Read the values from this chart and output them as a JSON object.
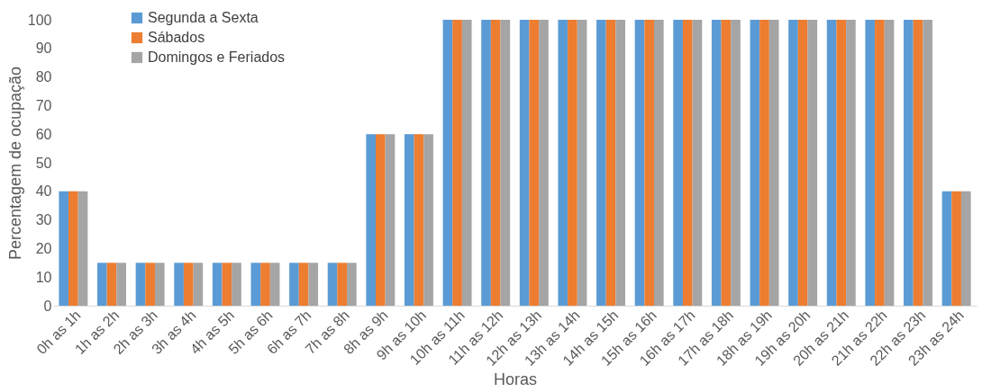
{
  "chart_data": {
    "type": "bar",
    "xlabel": "Horas",
    "ylabel": "Percentagem  de ocupação",
    "categories": [
      "0h as 1h",
      "1h as 2h",
      "2h as 3h",
      "3h as 4h",
      "4h as 5h",
      "5h as 6h",
      "6h as 7h",
      "7h as 8h",
      "8h as 9h",
      "9h as 10h",
      "10h as 11h",
      "11h as 12h",
      "12h as 13h",
      "13h as 14h",
      "14h as 15h",
      "15h as 16h",
      "16h as 17h",
      "17h as 18h",
      "18h as 19h",
      "19h as 20h",
      "20h as 21h",
      "21h as 22h",
      "22h as 23h",
      "23h as 24h"
    ],
    "series": [
      {
        "name": "Segunda a Sexta",
        "color": "#5b9bd5",
        "values": [
          40,
          15,
          15,
          15,
          15,
          15,
          15,
          15,
          60,
          60,
          100,
          100,
          100,
          100,
          100,
          100,
          100,
          100,
          100,
          100,
          100,
          100,
          100,
          40
        ]
      },
      {
        "name": "Sábados",
        "color": "#ed7d31",
        "values": [
          40,
          15,
          15,
          15,
          15,
          15,
          15,
          15,
          60,
          60,
          100,
          100,
          100,
          100,
          100,
          100,
          100,
          100,
          100,
          100,
          100,
          100,
          100,
          40
        ]
      },
      {
        "name": "Domingos e Feriados",
        "color": "#a5a5a5",
        "values": [
          40,
          15,
          15,
          15,
          15,
          15,
          15,
          15,
          60,
          60,
          100,
          100,
          100,
          100,
          100,
          100,
          100,
          100,
          100,
          100,
          100,
          100,
          100,
          40
        ]
      }
    ],
    "ylim": [
      0,
      100
    ],
    "yticks": [
      0,
      10,
      20,
      30,
      40,
      50,
      60,
      70,
      80,
      90,
      100
    ],
    "grid": false,
    "legend": "top left"
  }
}
